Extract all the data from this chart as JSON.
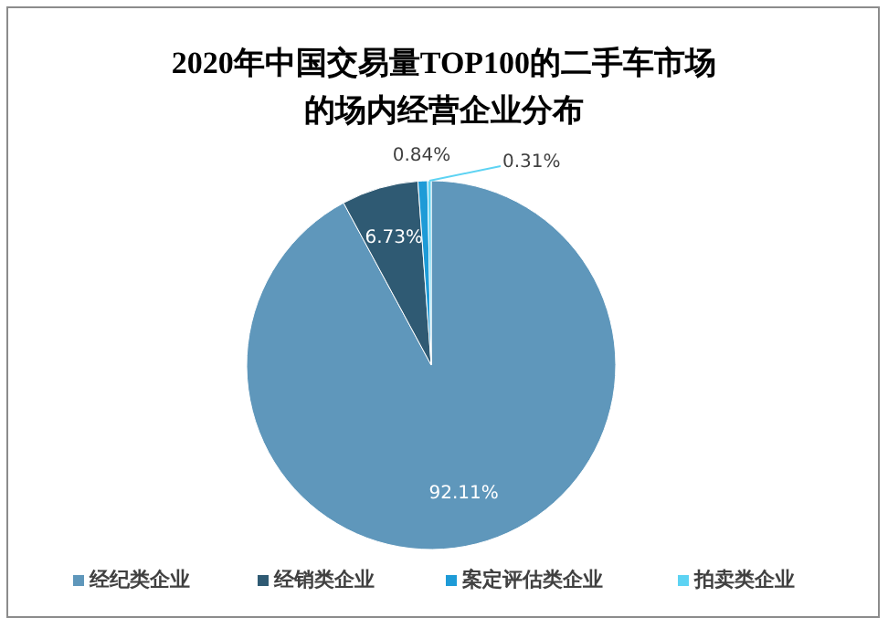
{
  "chart_data": {
    "type": "pie",
    "title": "2020年中国交易量TOP100的二手车市场的场内经营企业分布",
    "categories": [
      "经纪类企业",
      "经销类企业",
      "案定评估类企业",
      "拍卖类企业"
    ],
    "values": [
      92.11,
      6.73,
      0.84,
      0.31
    ],
    "colors": [
      "#5f97bb",
      "#2f5a73",
      "#1e9bd7",
      "#5dd3f3"
    ],
    "value_labels": [
      "92.11%",
      "6.73%",
      "0.84%",
      "0.31%"
    ],
    "legend": "bottom"
  }
}
